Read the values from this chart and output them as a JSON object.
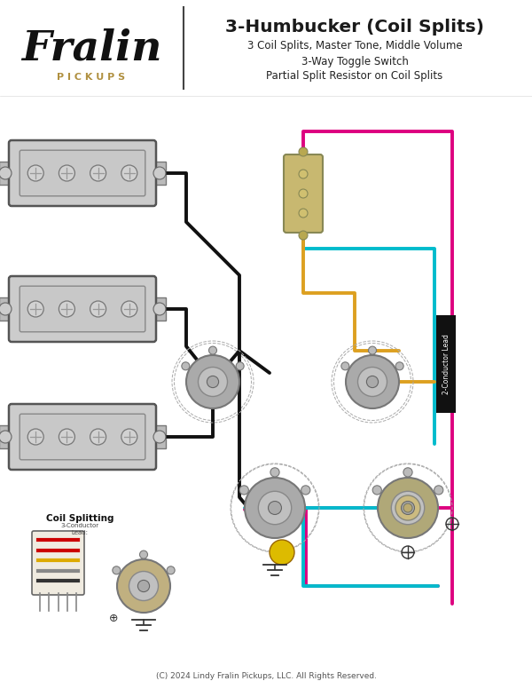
{
  "title": "3-Humbucker (Coil Splits)",
  "subtitle_lines": [
    "3 Coil Splits, Master Tone, Middle Volume",
    "3-Way Toggle Switch",
    "Partial Split Resistor on Coil Splits"
  ],
  "copyright": "(C) 2024 Lindy Fralin Pickups, LLC. All Rights Reserved.",
  "background_color": "#ffffff",
  "fralin_color": "#111111",
  "pickups_color": "#b09040",
  "title_color": "#1a1a1a",
  "wire_black": "#111111",
  "wire_magenta": "#dd007f",
  "wire_cyan": "#00bbcc",
  "wire_orange": "#dda020",
  "pickup_fill": "#cccccc",
  "pickup_border": "#666666",
  "pot_fill": "#aaaaaa",
  "pot_border": "#777777",
  "toggle_fill": "#c8b870",
  "toggle_border": "#888855",
  "ground_color": "#333333",
  "label_bg": "#111111",
  "label_fg": "#ffffff",
  "two_conductor_label": "2-Conductor Lead",
  "coil_split_label": "Coil Splitting"
}
